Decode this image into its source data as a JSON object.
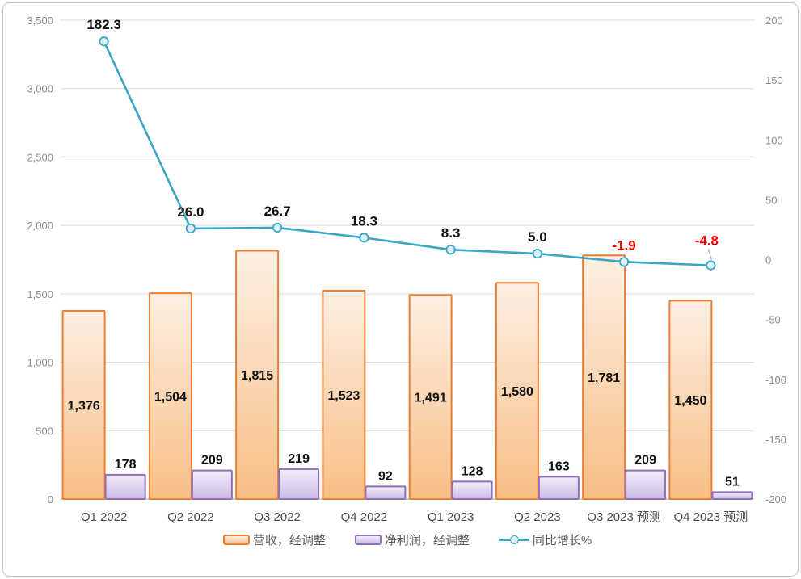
{
  "chart_data": {
    "type": "combo",
    "categories": [
      "Q1 2022",
      "Q2 2022",
      "Q3 2022",
      "Q4 2022",
      "Q1 2023",
      "Q2 2023",
      "Q3 2023 预测",
      "Q4 2023 预测"
    ],
    "series": [
      {
        "name": "营收，经调整",
        "type": "bar",
        "axis": "left",
        "values": [
          1376,
          1504,
          1815,
          1523,
          1491,
          1580,
          1781,
          1450
        ],
        "labels": [
          "1,376",
          "1,504",
          "1,815",
          "1,523",
          "1,491",
          "1,580",
          "1,781",
          "1,450"
        ]
      },
      {
        "name": "净利润，经调整",
        "type": "bar",
        "axis": "left",
        "values": [
          178,
          209,
          219,
          92,
          128,
          163,
          209,
          51
        ],
        "labels": [
          "178",
          "209",
          "219",
          "92",
          "128",
          "163",
          "209",
          "51"
        ]
      },
      {
        "name": "同比增长%",
        "type": "line",
        "axis": "right",
        "values": [
          182.3,
          26.0,
          26.7,
          18.3,
          8.3,
          5.0,
          -1.9,
          -4.8
        ],
        "labels": [
          "182.3",
          "26.0",
          "26.7",
          "18.3",
          "8.3",
          "5.0",
          "-1.9",
          "-4.8"
        ],
        "label_colors": [
          "#111111",
          "#111111",
          "#111111",
          "#111111",
          "#111111",
          "#111111",
          "#FF0000",
          "#FF0000"
        ],
        "callout_index": 7
      }
    ],
    "left_axis": {
      "min": 0,
      "max": 3500,
      "step": 500,
      "tick_values": [
        0,
        500,
        1000,
        1500,
        2000,
        2500,
        3000,
        3500
      ],
      "tick_labels": [
        "0",
        "500",
        "1,000",
        "1,500",
        "2,000",
        "2,500",
        "3,000",
        "3,500"
      ]
    },
    "right_axis": {
      "min": -200,
      "max": 200,
      "step": 50,
      "tick_values": [
        -200,
        -150,
        -100,
        -50,
        0,
        50,
        100,
        150,
        200
      ],
      "tick_labels": [
        "-200",
        "-150",
        "-100",
        "-50",
        "0",
        "50",
        "100",
        "150",
        "200"
      ]
    },
    "grid": true,
    "legend_position": "bottom"
  },
  "colors": {
    "revenue_border": "#ED7D31",
    "revenue_fill_top": "#FDF0E4",
    "revenue_fill_bottom": "#F8BE85",
    "profit_border": "#8E6FB8",
    "profit_fill_top": "#F2EDF9",
    "profit_fill_bottom": "#CDBBE6",
    "line": "#3AA5C5",
    "marker_fill": "#DCF0F8",
    "grid": "#D9D9D9",
    "axis_line": "#BFBFBF",
    "tick_label": "#8C8C8C",
    "x_label": "#4A4A4A",
    "legend_text": "#595959",
    "data_label": "#111111",
    "leader_line": "#A6A6A6",
    "frame_border": "#C6C6C6"
  }
}
